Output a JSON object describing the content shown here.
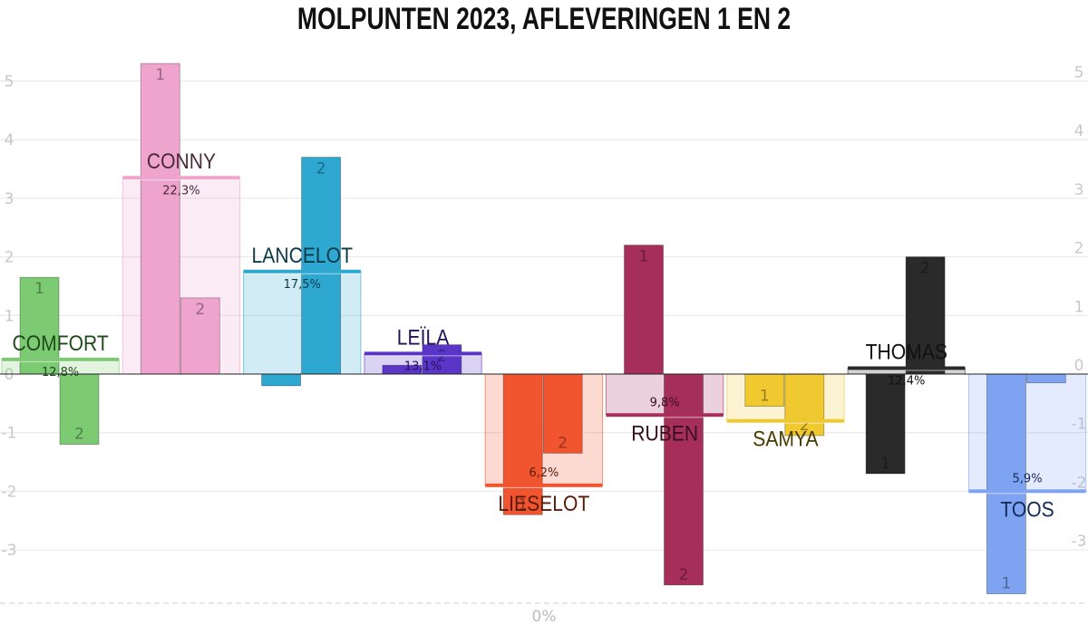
{
  "chart_data": {
    "type": "bar",
    "title": "MOLPUNTEN 2023, AFLEVERINGEN 1 EN 2",
    "y_ticks": [
      "5",
      "4",
      "3",
      "2",
      "1",
      "0",
      "-1",
      "-2",
      "-3"
    ],
    "ylim": [
      -3.8,
      5.3
    ],
    "bottom_label": "0%",
    "grid": true,
    "series": [
      "1",
      "2"
    ],
    "candidates": [
      {
        "name": "COMFORT",
        "percentage": "12,8%",
        "average": 0.25,
        "ep1": 1.65,
        "ep2": -1.2,
        "color": "#7ccb73",
        "text_color": "#1e4a1a"
      },
      {
        "name": "CONNY",
        "percentage": "22,3%",
        "average": 3.35,
        "ep1": 5.3,
        "ep2": 1.3,
        "color": "#efa4cd",
        "text_color": "#4a2a38"
      },
      {
        "name": "LANCELOT",
        "percentage": "17,5%",
        "average": 1.75,
        "ep1": -0.2,
        "ep2": 3.7,
        "color": "#2ea8d0",
        "text_color": "#0d3a4a"
      },
      {
        "name": "LEÏLA",
        "percentage": "13,1%",
        "average": 0.35,
        "ep1": 0.15,
        "ep2": 0.5,
        "color": "#5a35c8",
        "text_color": "#231258"
      },
      {
        "name": "LIESELOT",
        "percentage": "6,2%",
        "average": -1.9,
        "ep1": -2.4,
        "ep2": -1.35,
        "color": "#f05530",
        "text_color": "#5a1a08"
      },
      {
        "name": "RUBEN",
        "percentage": "9,8%",
        "average": -0.7,
        "ep1": 2.2,
        "ep2": -3.6,
        "color": "#a62f5a",
        "text_color": "#3a0d1c"
      },
      {
        "name": "SAMYA",
        "percentage": "",
        "average": -0.8,
        "ep1": -0.55,
        "ep2": -1.05,
        "color": "#f0c830",
        "text_color": "#4a3a00"
      },
      {
        "name": "THOMAS",
        "percentage": "12,4%",
        "average": 0.1,
        "ep1": -1.7,
        "ep2": 2.0,
        "color": "#2a2a2a",
        "text_color": "#111111"
      },
      {
        "name": "TOOS",
        "percentage": "5,9%",
        "average": -2.0,
        "ep1": -3.75,
        "ep2": -0.15,
        "color": "#7ea3f0",
        "text_color": "#142a5a"
      }
    ]
  }
}
